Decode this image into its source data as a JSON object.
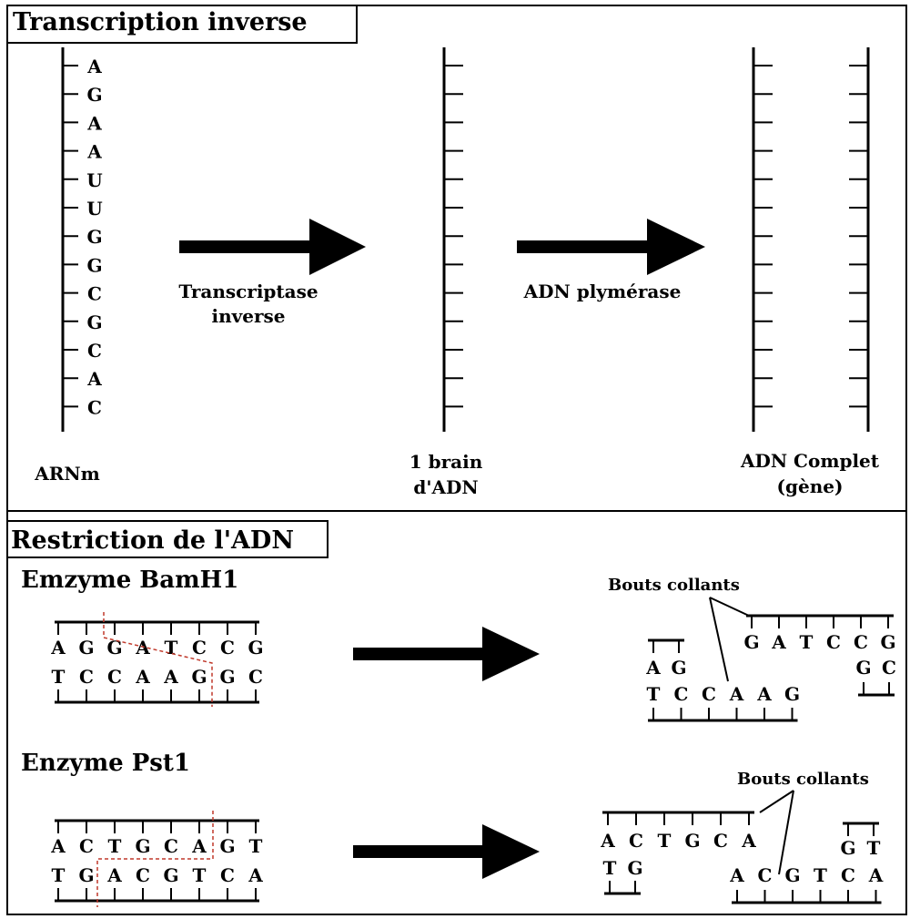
{
  "colors": {
    "ink": "#000000",
    "cut_line": "#c0392b",
    "background": "#ffffff"
  },
  "section1": {
    "title": "Transcription inverse",
    "mrna_bases": [
      "A",
      "G",
      "A",
      "A",
      "U",
      "U",
      "G",
      "G",
      "C",
      "G",
      "C",
      "A",
      "C"
    ],
    "mrna_label": "ARNm",
    "arrow1_label": [
      "Transcriptase",
      "inverse"
    ],
    "arrow2_label": "ADN plymérase",
    "single_strand_label": [
      "1 brain",
      "d'ADN"
    ],
    "complete_label": [
      "ADN Complet",
      "(gène)"
    ]
  },
  "section2": {
    "title": "Restriction de l'ADN",
    "bamh1": {
      "title": "Emzyme BamH1",
      "top": [
        "A",
        "G",
        "G",
        "A",
        "T",
        "C",
        "C",
        "G"
      ],
      "bottom": [
        "T",
        "C",
        "C",
        "A",
        "A",
        "G",
        "G",
        "C"
      ],
      "sticky_label": "Bouts collants",
      "left_fragment": {
        "top": [
          "A",
          "G"
        ],
        "bottom": [
          "T",
          "C",
          "C",
          "A",
          "A",
          "G"
        ]
      },
      "right_fragment": {
        "top": [
          "G",
          "A",
          "T",
          "C",
          "C",
          "G"
        ],
        "bottom": [
          "G",
          "C"
        ]
      }
    },
    "pst1": {
      "title": "Enzyme Pst1",
      "top": [
        "A",
        "C",
        "T",
        "G",
        "C",
        "A",
        "G",
        "T"
      ],
      "bottom": [
        "T",
        "G",
        "A",
        "C",
        "G",
        "T",
        "C",
        "A"
      ],
      "sticky_label": "Bouts collants",
      "left_fragment": {
        "top": [
          "A",
          "C",
          "T",
          "G",
          "C",
          "A"
        ],
        "bottom": [
          "T",
          "G"
        ]
      },
      "right_fragment": {
        "top": [
          "G",
          "T"
        ],
        "bottom": [
          "A",
          "C",
          "G",
          "T",
          "C",
          "A"
        ]
      }
    }
  }
}
